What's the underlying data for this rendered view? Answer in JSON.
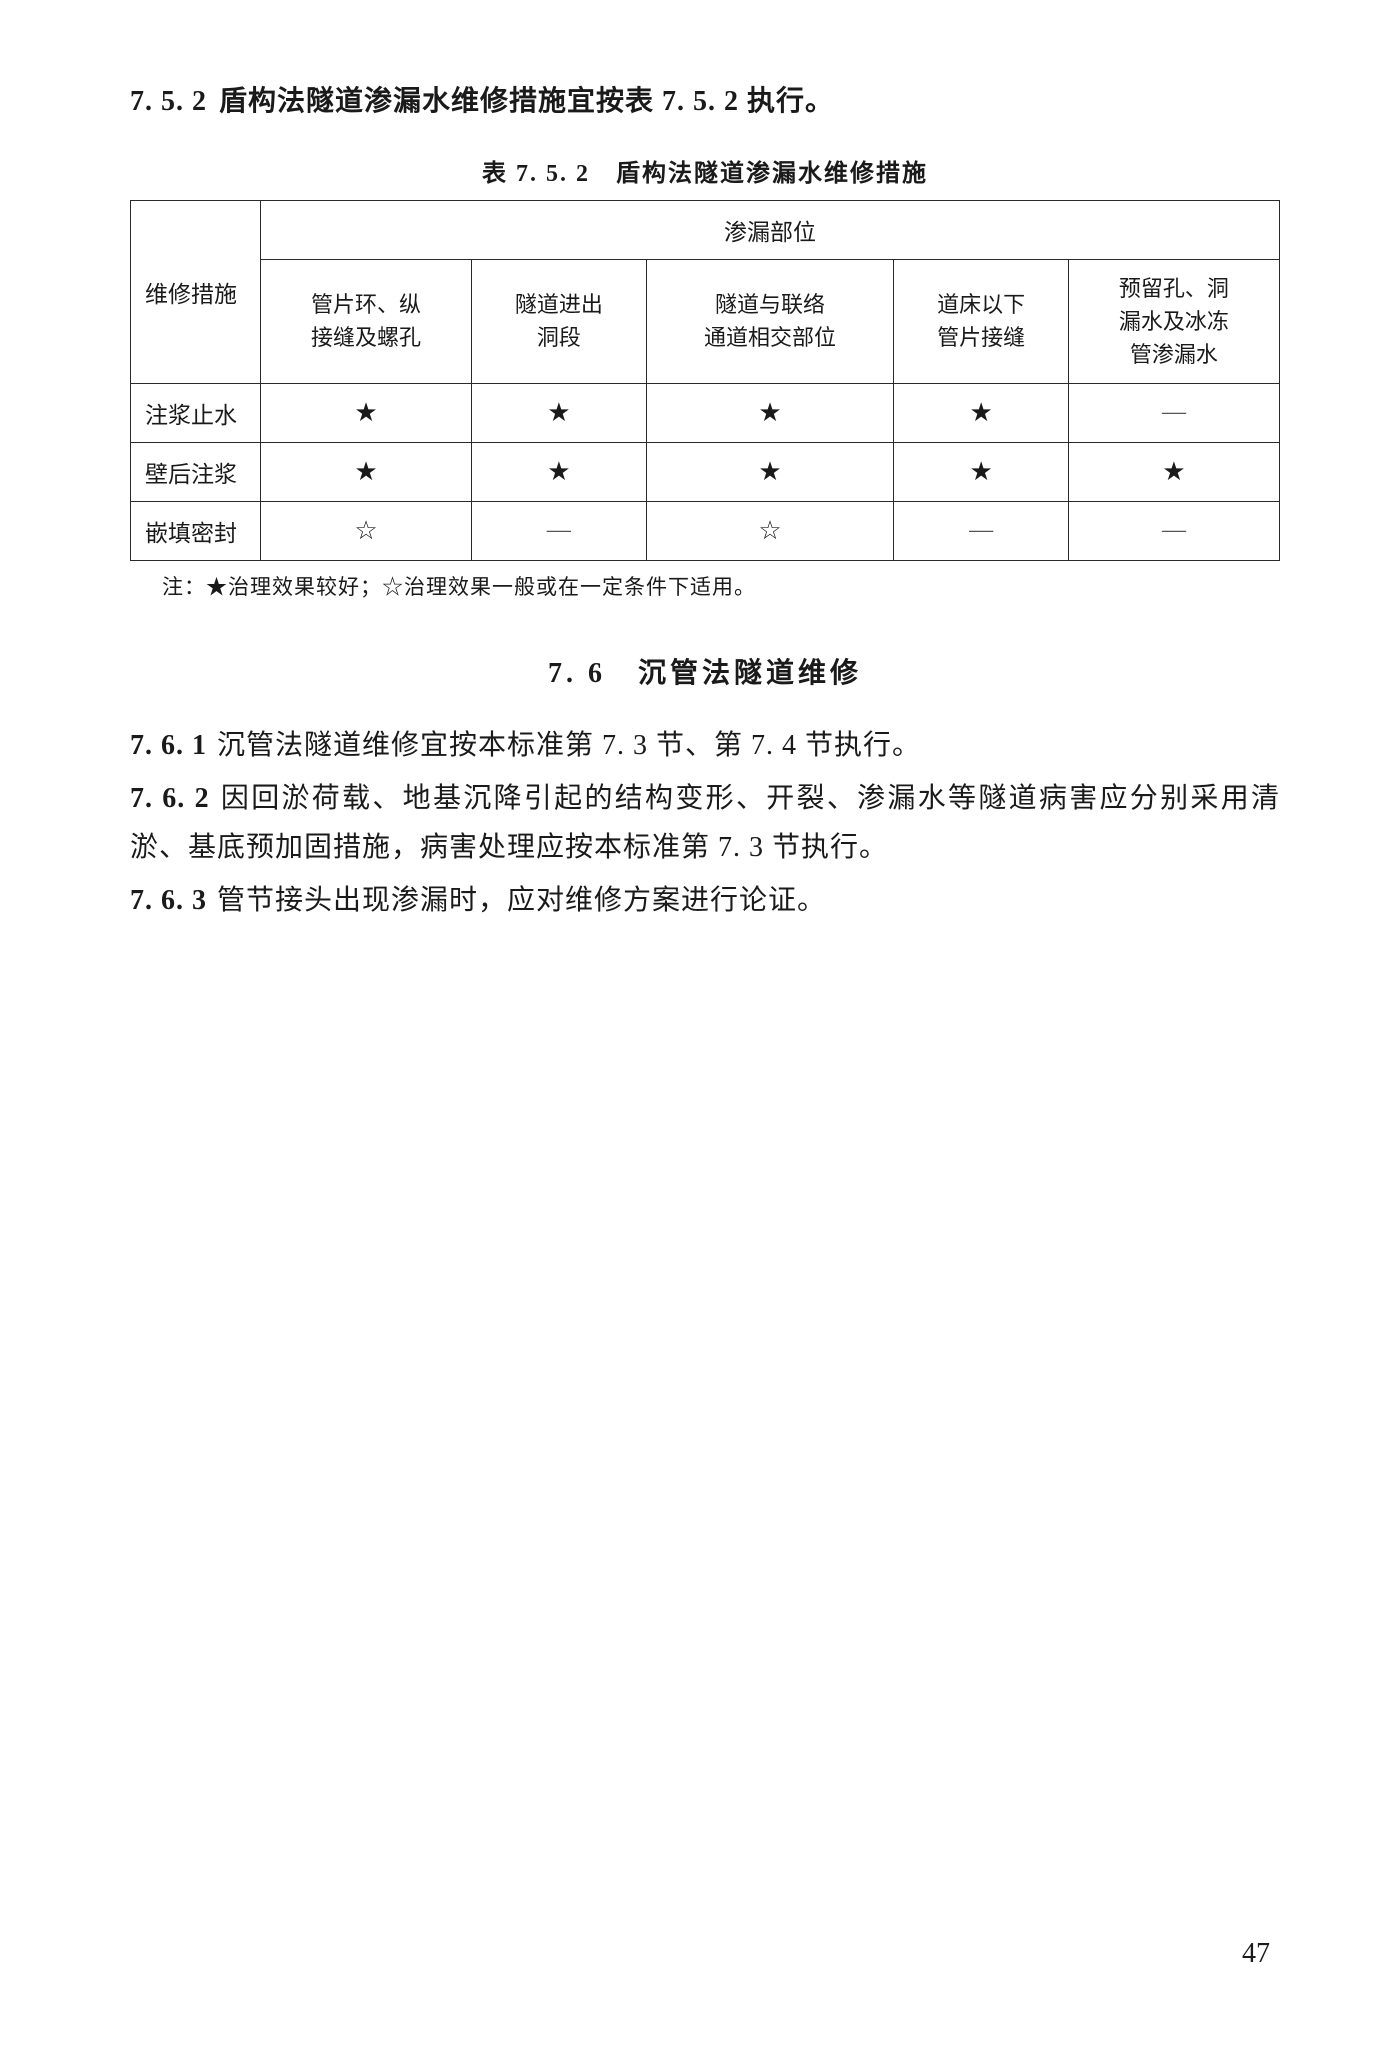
{
  "heading752": {
    "number": "7. 5. 2",
    "text": "盾构法隧道渗漏水维修措施宜按表 7. 5. 2 执行。"
  },
  "table": {
    "caption": "表 7. 5. 2　盾构法隧道渗漏水维修措施",
    "cornerHeader": "维修措施",
    "groupHeader": "渗漏部位",
    "columns": [
      "管片环、纵\n接缝及螺孔",
      "隧道进出\n洞段",
      "隧道与联络\n通道相交部位",
      "道床以下\n管片接缝",
      "预留孔、洞\n漏水及冰冻\n管渗漏水"
    ],
    "rows": [
      {
        "label": "注浆止水",
        "cells": [
          "★",
          "★",
          "★",
          "★",
          "—"
        ]
      },
      {
        "label": "壁后注浆",
        "cells": [
          "★",
          "★",
          "★",
          "★",
          "★"
        ]
      },
      {
        "label": "嵌填密封",
        "cells": [
          "☆",
          "—",
          "☆",
          "—",
          "—"
        ]
      }
    ],
    "note": "注：★治理效果较好；☆治理效果一般或在一定条件下适用。",
    "symbols": {
      "good": "★",
      "fair": "☆",
      "none": "—"
    }
  },
  "section76": {
    "title": "7. 6　沉管法隧道维修",
    "paragraphs": [
      {
        "number": "7. 6. 1",
        "text": "沉管法隧道维修宜按本标准第 7. 3 节、第 7. 4 节执行。"
      },
      {
        "number": "7. 6. 2",
        "text": "因回淤荷载、地基沉降引起的结构变形、开裂、渗漏水等隧道病害应分别采用清淤、基底预加固措施，病害处理应按本标准第 7. 3 节执行。"
      },
      {
        "number": "7. 6. 3",
        "text": "管节接头出现渗漏时，应对维修方案进行论证。"
      }
    ]
  },
  "pageNumber": "47",
  "colors": {
    "text": "#1a1a1a",
    "border": "#2a2a2a",
    "background": "#ffffff",
    "dash": "#555555"
  },
  "fontSizes": {
    "heading": 28,
    "tableCaption": 24,
    "tableCell": 23,
    "tableNote": 21,
    "paragraph": 28,
    "pageNumber": 28
  }
}
